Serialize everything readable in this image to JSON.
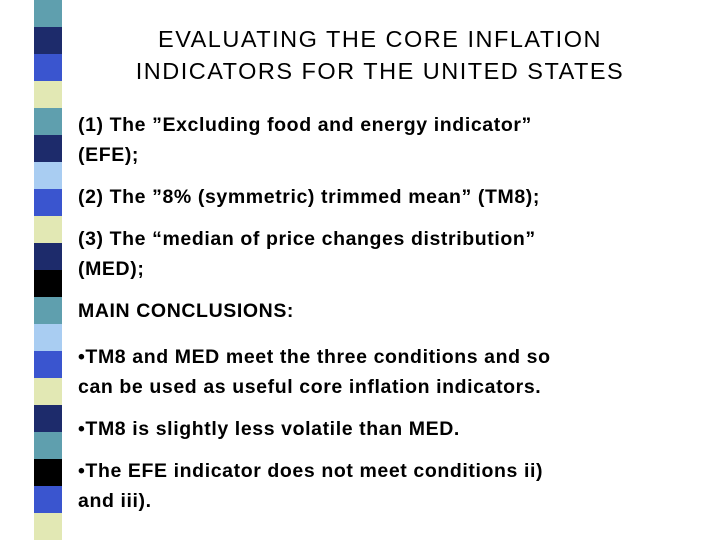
{
  "title": {
    "lines": [
      "EVALUATING THE CORE INFLATION",
      "INDICATORS FOR THE UNITED STATES"
    ]
  },
  "indicators": [
    {
      "lines": [
        "(1) The ”Excluding food and energy indicator”",
        "(EFE);"
      ]
    },
    {
      "lines": [
        "(2) The ”8% (symmetric) trimmed mean” (TM8);"
      ]
    },
    {
      "lines": [
        "(3) The “median of price changes distribution”",
        "(MED);"
      ]
    }
  ],
  "conclusions": {
    "heading": "MAIN CONCLUSIONS:",
    "items": [
      {
        "lines": [
          "•TM8 and MED meet the three conditions and so",
          "can be used as useful core inflation indicators."
        ]
      },
      {
        "lines": [
          "•TM8 is slightly less volatile than MED."
        ]
      },
      {
        "lines": [
          "•The EFE indicator does not meet conditions ii)",
          "and iii)."
        ]
      }
    ]
  }
}
